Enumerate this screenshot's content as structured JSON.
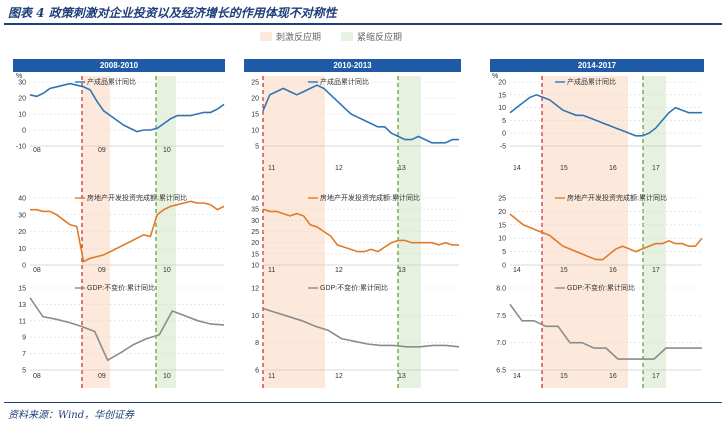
{
  "figure": {
    "title": "图表 4   政策刺激对企业投资以及经济增长的作用体现不对称性",
    "source": "资料来源：Wind，华创证券",
    "legend": [
      {
        "label": "刺激反应期",
        "color": "#fde9dc"
      },
      {
        "label": "紧缩反应期",
        "color": "#e6f2df"
      }
    ]
  },
  "colors": {
    "blue": "#2e75b6",
    "orange": "#e07b2a",
    "gray": "#8c8c8c",
    "stim": "#fde9dc",
    "tight": "#e6f2df",
    "red_line": "#d02020",
    "green_line": "#5b9a2f"
  },
  "chart_data": [
    {
      "type": "line",
      "panel": "2008-2010",
      "unit": "%",
      "x_ticks": [
        "08",
        "09",
        "10"
      ],
      "charts": [
        {
          "series_name": "产成品累计同比",
          "ylim": [
            -10,
            30
          ],
          "yticks": [
            -10,
            0,
            10,
            20,
            30
          ],
          "values": [
            22,
            21,
            23,
            26,
            27,
            28,
            29,
            28,
            27,
            25,
            18,
            12,
            9,
            6,
            3,
            1,
            -1,
            0,
            0,
            1,
            4,
            7,
            9,
            9,
            9,
            10,
            11,
            11,
            13,
            16
          ]
        },
        {
          "series_name": "房地产开发投资完成额:累计同比",
          "ylim": [
            0,
            40
          ],
          "yticks": [
            0,
            10,
            20,
            30,
            40
          ],
          "values": [
            33,
            33,
            32,
            32,
            30,
            27,
            24,
            23,
            2,
            4,
            5,
            6,
            8,
            10,
            12,
            14,
            16,
            18,
            17,
            30,
            33,
            35,
            36,
            37,
            38,
            37,
            37,
            36,
            33,
            35
          ]
        },
        {
          "series_name": "GDP:不变价:累计同比",
          "ylim": [
            5,
            15
          ],
          "yticks": [
            5,
            7,
            9,
            11,
            13,
            15
          ],
          "values": [
            13.8,
            11.5,
            11.2,
            10.8,
            10.3,
            9.7,
            6.2,
            7.1,
            8.1,
            8.8,
            9.3,
            12.2,
            11.6,
            11.0,
            10.6,
            10.5
          ]
        }
      ]
    },
    {
      "type": "line",
      "panel": "2010-2013",
      "unit": "",
      "x_ticks": [
        "11",
        "12",
        "13"
      ],
      "charts": [
        {
          "series_name": "产成品累计同比",
          "ylim": [
            5,
            25
          ],
          "yticks": [
            5,
            10,
            15,
            20,
            25
          ],
          "values": [
            16,
            21,
            22,
            23,
            22,
            21,
            22,
            23,
            24,
            23,
            21,
            19,
            17,
            15,
            14,
            13,
            12,
            11,
            11,
            9,
            8,
            7,
            7,
            8,
            7,
            6,
            6,
            6,
            7,
            7
          ]
        },
        {
          "series_name": "房地产开发投资完成额:累计同比",
          "ylim": [
            10,
            40
          ],
          "yticks": [
            10,
            15,
            20,
            25,
            30,
            35,
            40
          ],
          "values": [
            35,
            34,
            34,
            33,
            32,
            33,
            32,
            28,
            27,
            25,
            23,
            19,
            18,
            17,
            16,
            16,
            17,
            16,
            18,
            20,
            21,
            21,
            20,
            20,
            20,
            20,
            19,
            20,
            19,
            19
          ]
        },
        {
          "series_name": "GDP:不变价:累计同比",
          "ylim": [
            6,
            12
          ],
          "yticks": [
            6,
            8,
            10,
            12
          ],
          "values": [
            10.5,
            10.2,
            9.9,
            9.6,
            9.2,
            8.9,
            8.3,
            8.1,
            7.9,
            7.8,
            7.8,
            7.7,
            7.7,
            7.8,
            7.8,
            7.7
          ]
        }
      ]
    },
    {
      "type": "line",
      "panel": "2014-2017",
      "unit": "%",
      "x_ticks": [
        "14",
        "15",
        "16",
        "17"
      ],
      "charts": [
        {
          "series_name": "产成品累计同比",
          "ylim": [
            -5,
            20
          ],
          "yticks": [
            -5,
            0,
            5,
            10,
            15,
            20
          ],
          "values": [
            8,
            10,
            12,
            14,
            15,
            14,
            13,
            11,
            9,
            8,
            7,
            7,
            6,
            5,
            4,
            3,
            2,
            1,
            0,
            -1,
            -1,
            0,
            2,
            5,
            8,
            10,
            9,
            8,
            8,
            8
          ]
        },
        {
          "series_name": "房地产开发投资完成额:累计同比",
          "ylim": [
            0,
            25
          ],
          "yticks": [
            0,
            5,
            10,
            15,
            20,
            25
          ],
          "values": [
            19,
            17,
            15,
            14,
            13,
            12,
            11,
            9,
            7,
            6,
            5,
            4,
            3,
            2,
            2,
            4,
            6,
            7,
            6,
            5,
            6,
            7,
            8,
            8,
            9,
            8,
            8,
            7,
            7,
            10
          ]
        },
        {
          "series_name": "GDP:不变价:累计同比",
          "ylim": [
            6.5,
            8.0
          ],
          "yticks": [
            6.5,
            7.0,
            7.5,
            8.0
          ],
          "values": [
            7.7,
            7.4,
            7.4,
            7.3,
            7.3,
            7.0,
            7.0,
            6.9,
            6.9,
            6.7,
            6.7,
            6.7,
            6.7,
            6.9,
            6.9,
            6.9,
            6.9
          ]
        }
      ]
    }
  ]
}
